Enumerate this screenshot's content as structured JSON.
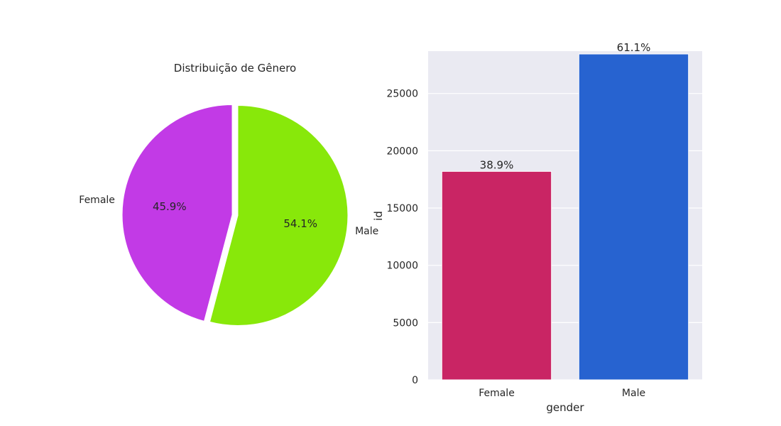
{
  "chart_data": [
    {
      "type": "pie",
      "title": "Distribuição de Gênero",
      "labels": [
        "Female",
        "Male"
      ],
      "values": [
        45.9,
        54.1
      ],
      "value_labels": [
        "45.9%",
        "54.1%"
      ],
      "colors": [
        "#c23ae6",
        "#88e80a"
      ],
      "explode": true,
      "start_angle_deg": 90
    },
    {
      "type": "bar",
      "categories": [
        "Female",
        "Male"
      ],
      "values": [
        18200,
        28450
      ],
      "value_labels": [
        "38.9%",
        "61.1%"
      ],
      "colors": [
        "#c92564",
        "#2763d0"
      ],
      "xlabel": "gender",
      "ylabel": "id",
      "ylim": [
        0,
        28700
      ],
      "yticks": [
        0,
        5000,
        10000,
        15000,
        20000,
        25000
      ],
      "ytick_labels": [
        "0",
        "5000",
        "10000",
        "15000",
        "20000",
        "25000"
      ],
      "grid": true,
      "background": "#eaeaf2"
    }
  ]
}
